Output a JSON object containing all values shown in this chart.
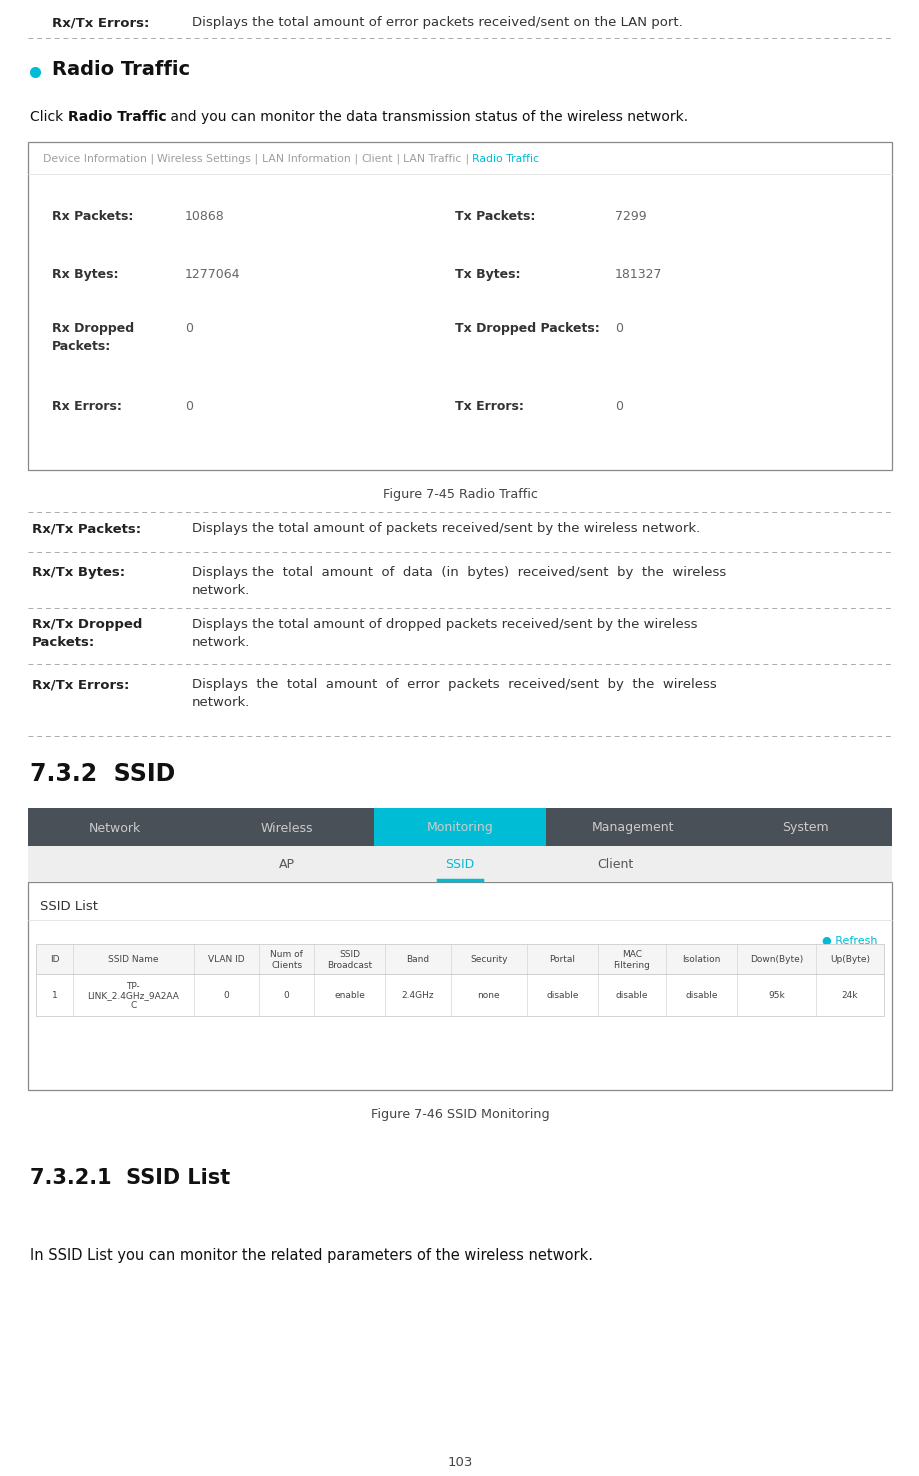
{
  "bg_color": "#ffffff",
  "page_width": 9.2,
  "page_height": 14.76,
  "top_label": "Rx/Tx Errors:",
  "top_desc": "Displays the total amount of error packets received/sent on the LAN port.",
  "bullet_color": "#00bcd4",
  "bullet_title": "Radio Traffic",
  "intro_parts": [
    {
      "text": "Click ",
      "bold": false
    },
    {
      "text": "Radio Traffic",
      "bold": true
    },
    {
      "text": " and you can monitor the data transmission status of the wireless network.",
      "bold": false
    }
  ],
  "radio_box_nav": [
    "Device Information",
    "Wireless Settings",
    "LAN Information",
    "Client",
    "LAN Traffic",
    "Radio Traffic"
  ],
  "radio_box_nav_active": "Radio Traffic",
  "radio_box_nav_active_color": "#00bcd4",
  "radio_box_nav_color": "#9e9e9e",
  "radio_box_rows": [
    {
      "ll": "Rx Packets:",
      "lv": "10868",
      "rl": "Tx Packets:",
      "rv": "7299"
    },
    {
      "ll": "Rx Bytes:",
      "lv": "1277064",
      "rl": "Tx Bytes:",
      "rv": "181327"
    },
    {
      "ll": "Rx Dropped\nPackets:",
      "lv": "0",
      "rl": "Tx Dropped Packets:",
      "rv": "0"
    },
    {
      "ll": "Rx Errors:",
      "lv": "0",
      "rl": "Tx Errors:",
      "rv": "0"
    }
  ],
  "fig_caption_1": "Figure 7-45 Radio Traffic",
  "table_entries": [
    {
      "label": "Rx/Tx Packets:",
      "desc": "Displays the total amount of packets received/sent by the wireless network.",
      "two_line": false
    },
    {
      "label": "Rx/Tx Bytes:",
      "desc": "Displays the  total  amount  of  data  (in  bytes)  received/sent  by  the  wireless\nnetwork.",
      "two_line": true
    },
    {
      "label": "Rx/Tx Dropped\nPackets:",
      "desc": "Displays the total amount of dropped packets received/sent by the wireless\nnetwork.",
      "two_line": true
    },
    {
      "label": "Rx/Tx Errors:",
      "desc": "Displays  the  total  amount  of  error  packets  received/sent  by  the  wireless\nnetwork.",
      "two_line": true
    }
  ],
  "section_732": "7.3.2  SSID",
  "ssid_nav_tabs": [
    "Network",
    "Wireless",
    "Monitoring",
    "Management",
    "System"
  ],
  "ssid_nav_active": "Monitoring",
  "ssid_nav_bg": "#4a5058",
  "ssid_nav_active_bg": "#00bcd4",
  "ssid_nav_text": "#cccccc",
  "ssid_sub_tabs": [
    "AP",
    "SSID",
    "Client"
  ],
  "ssid_sub_active": "SSID",
  "ssid_sub_active_color": "#00bcd4",
  "ssid_list_title": "SSID List",
  "ssid_refresh_text": "Refresh",
  "ssid_refresh_color": "#00bcd4",
  "ssid_table_headers": [
    "ID",
    "SSID Name",
    "VLAN ID",
    "Num of\nClients",
    "SSID\nBroadcast",
    "Band",
    "Security",
    "Portal",
    "MAC\nFiltering",
    "Isolation",
    "Down(Byte)",
    "Up(Byte)"
  ],
  "ssid_table_data": [
    "1",
    "TP-\nLINK_2.4GHz_9A2AA\nC",
    "0",
    "0",
    "enable",
    "2.4GHz",
    "none",
    "disable",
    "disable",
    "disable",
    "95k",
    "24k"
  ],
  "fig_caption_2": "Figure 7-46 SSID Monitoring",
  "section_7321": "7.3.2.1  SSID List",
  "final_text": "In SSID List you can monitor the related parameters of the wireless network.",
  "page_number": "103",
  "dash_color": "#aaaaaa"
}
